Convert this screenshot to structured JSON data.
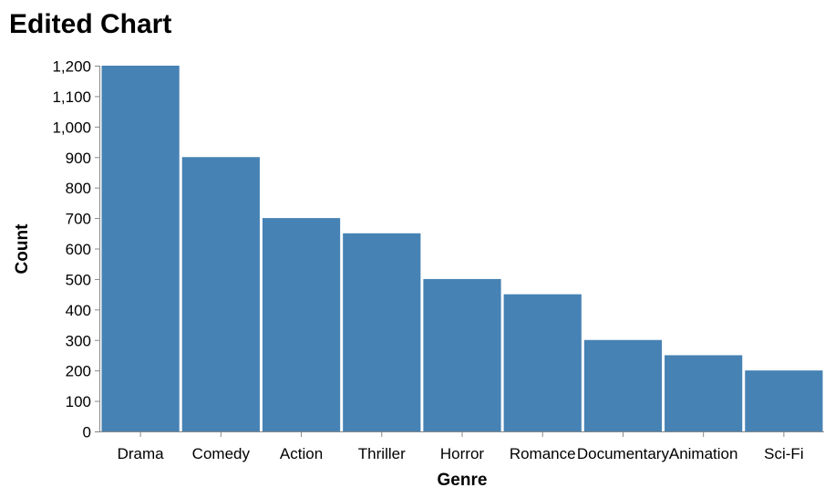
{
  "chart_data": {
    "type": "bar",
    "title": "Edited Chart",
    "xlabel": "Genre",
    "ylabel": "Count",
    "categories": [
      "Drama",
      "Comedy",
      "Action",
      "Thriller",
      "Horror",
      "Romance",
      "Documentary",
      "Animation",
      "Sci-Fi"
    ],
    "values": [
      1200,
      900,
      700,
      650,
      500,
      450,
      300,
      250,
      200
    ],
    "ylim": [
      0,
      1200
    ],
    "yticks": [
      0,
      100,
      200,
      300,
      400,
      500,
      600,
      700,
      800,
      900,
      1000,
      1100,
      1200
    ],
    "ytick_labels": [
      "0",
      "100",
      "200",
      "300",
      "400",
      "500",
      "600",
      "700",
      "800",
      "900",
      "1,000",
      "1,100",
      "1,200"
    ],
    "grid": false,
    "bar_color": "#4682b4"
  }
}
